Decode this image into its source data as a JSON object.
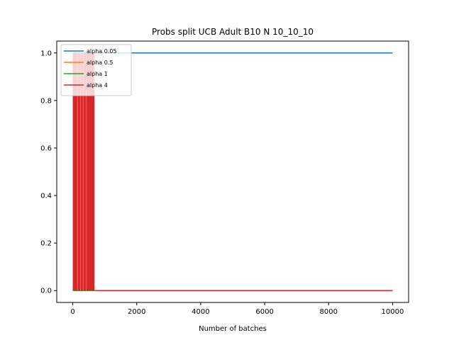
{
  "chart_data": {
    "type": "line",
    "title": "Probs split UCB Adult B10 N 10_10_10",
    "xlabel": "Number of batches",
    "ylabel": "",
    "xlim": [
      -500,
      10500
    ],
    "ylim": [
      -0.05,
      1.05
    ],
    "xticks": [
      0,
      2000,
      4000,
      6000,
      8000,
      10000
    ],
    "yticks": [
      0.0,
      0.2,
      0.4,
      0.6,
      0.8,
      1.0
    ],
    "xtick_labels": [
      "0",
      "2000",
      "4000",
      "6000",
      "8000",
      "10000"
    ],
    "ytick_labels": [
      "0.0",
      "0.2",
      "0.4",
      "0.6",
      "0.8",
      "1.0"
    ],
    "grid": false,
    "legend_position": "top-left",
    "series": [
      {
        "name": "alpha 0.05",
        "color": "#1f77b4",
        "x": [
          0,
          10000
        ],
        "values": [
          1.0,
          1.0
        ]
      },
      {
        "name": "alpha 0.5",
        "color": "#ff7f0e",
        "x": [
          0,
          10000
        ],
        "values": [
          0.0,
          0.0
        ]
      },
      {
        "name": "alpha 1",
        "color": "#2ca02c",
        "x": [
          0,
          10000
        ],
        "values": [
          0.0,
          0.0
        ]
      },
      {
        "name": "alpha 4",
        "color": "#d62728",
        "oscillation_range": [
          0,
          680
        ],
        "oscillation_values": [
          0.0,
          1.0
        ],
        "x": [
          680,
          10000
        ],
        "values": [
          0.0,
          0.0
        ]
      }
    ]
  }
}
